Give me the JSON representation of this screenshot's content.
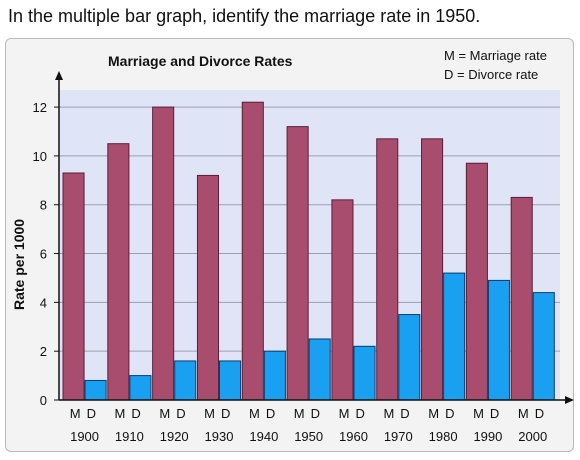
{
  "question": "In the multiple bar graph, identify the marriage rate in 1950.",
  "chart_data": {
    "type": "bar",
    "title": "Marriage and Divorce Rates",
    "ylabel": "Rate per 1000",
    "xlabel": "",
    "ylim": [
      0,
      12.7
    ],
    "yticks": [
      0,
      2,
      4,
      6,
      8,
      10,
      12
    ],
    "categories": [
      "1900",
      "1910",
      "1920",
      "1930",
      "1940",
      "1950",
      "1960",
      "1970",
      "1980",
      "1990",
      "2000"
    ],
    "bar_letters": [
      "M",
      "D"
    ],
    "legend": [
      "M = Marriage rate",
      "D = Divorce rate"
    ],
    "legend_position": "top-right",
    "grid": true,
    "series": [
      {
        "key": "M",
        "color": "#a84d6e",
        "values": [
          9.3,
          10.5,
          12.0,
          9.2,
          12.2,
          11.2,
          8.2,
          10.7,
          10.7,
          9.7,
          8.3
        ]
      },
      {
        "key": "D",
        "color": "#1aa0f0",
        "values": [
          0.8,
          1.0,
          1.6,
          1.6,
          2.0,
          2.5,
          2.2,
          3.5,
          5.2,
          4.9,
          4.4
        ]
      }
    ],
    "colors": {
      "plot_bg": "#dfe4f7",
      "grid": "#9aa0b0",
      "marriage_stroke": "#5a1f38",
      "divorce_stroke": "#0a3d6e"
    }
  }
}
